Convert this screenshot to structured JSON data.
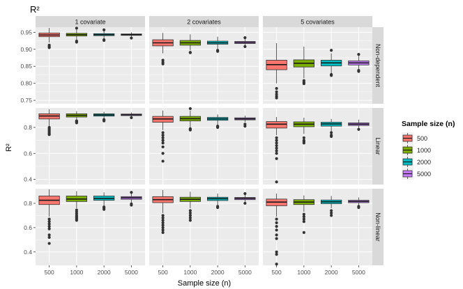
{
  "chart_data": {
    "type": "boxplot",
    "title": "R²",
    "xlabel": "Sample size (n)",
    "ylabel": "R²",
    "categories": [
      "500",
      "1000",
      "2000",
      "5000"
    ],
    "legend": {
      "title": "Sample size (n)",
      "position": "right",
      "entries": [
        {
          "name": "500",
          "color": "#F8766D"
        },
        {
          "name": "1000",
          "color": "#7CAE00"
        },
        {
          "name": "2000",
          "color": "#00BFC4"
        },
        {
          "name": "5000",
          "color": "#C77CFF"
        }
      ]
    },
    "columns": [
      "1 covariate",
      "2 covariates",
      "5 covariates"
    ],
    "rows": [
      {
        "label": "Non-dependent",
        "ylim": [
          0.74,
          0.965
        ],
        "yticks": [
          0.75,
          0.8,
          0.85,
          0.9,
          0.95
        ],
        "yticklabels": [
          "0.75",
          "0.80",
          "0.85",
          "0.90",
          "0.95"
        ]
      },
      {
        "label": "Linear",
        "ylim": [
          0.36,
          0.95
        ],
        "yticks": [
          0.4,
          0.6,
          0.8
        ],
        "yticklabels": [
          "0.4",
          "0.6",
          "0.8"
        ]
      },
      {
        "label": "Non-linear",
        "ylim": [
          0.29,
          0.92
        ],
        "yticks": [
          0.4,
          0.6,
          0.8
        ],
        "yticklabels": [
          "0.4",
          "0.6",
          "0.8"
        ]
      }
    ],
    "grid": true,
    "panels": [
      [
        {
          "boxes": [
            {
              "q1": 0.937,
              "median": 0.942,
              "q3": 0.948,
              "wlo": 0.92,
              "whi": 0.963,
              "outliers": [
                0.912,
                0.908,
                0.905
              ]
            },
            {
              "q1": 0.939,
              "median": 0.943,
              "q3": 0.947,
              "wlo": 0.928,
              "whi": 0.957,
              "outliers": [
                0.962,
                0.924,
                0.921
              ]
            },
            {
              "q1": 0.94,
              "median": 0.943,
              "q3": 0.946,
              "wlo": 0.932,
              "whi": 0.954,
              "outliers": [
                0.957,
                0.928,
                0.926
              ]
            },
            {
              "q1": 0.941,
              "median": 0.943,
              "q3": 0.945,
              "wlo": 0.936,
              "whi": 0.95,
              "outliers": [
                0.933
              ]
            }
          ]
        },
        {
          "boxes": [
            {
              "q1": 0.91,
              "median": 0.919,
              "q3": 0.928,
              "wlo": 0.888,
              "whi": 0.948,
              "outliers": [
                0.868,
                0.862,
                0.857
              ]
            },
            {
              "q1": 0.912,
              "median": 0.919,
              "q3": 0.926,
              "wlo": 0.897,
              "whi": 0.944,
              "outliers": [
                0.891,
                0.89
              ]
            },
            {
              "q1": 0.915,
              "median": 0.919,
              "q3": 0.924,
              "wlo": 0.902,
              "whi": 0.937,
              "outliers": [
                0.897,
                0.894
              ]
            },
            {
              "q1": 0.917,
              "median": 0.92,
              "q3": 0.923,
              "wlo": 0.911,
              "whi": 0.93,
              "outliers": [
                0.934,
                0.908
              ]
            }
          ]
        },
        {
          "boxes": [
            {
              "q1": 0.84,
              "median": 0.855,
              "q3": 0.868,
              "wlo": 0.8,
              "whi": 0.918,
              "outliers": [
                0.785,
                0.775,
                0.768,
                0.762,
                0.757
              ]
            },
            {
              "q1": 0.848,
              "median": 0.859,
              "q3": 0.869,
              "wlo": 0.815,
              "whi": 0.908,
              "outliers": [
                0.808,
                0.803,
                0.799
              ]
            },
            {
              "q1": 0.851,
              "median": 0.86,
              "q3": 0.868,
              "wlo": 0.83,
              "whi": 0.888,
              "outliers": [
                0.897,
                0.826,
                0.823
              ]
            },
            {
              "q1": 0.854,
              "median": 0.86,
              "q3": 0.866,
              "wlo": 0.841,
              "whi": 0.88,
              "outliers": [
                0.885,
                0.838,
                0.835
              ]
            }
          ]
        }
      ],
      [
        {
          "boxes": [
            {
              "q1": 0.865,
              "median": 0.888,
              "q3": 0.905,
              "wlo": 0.81,
              "whi": 0.94,
              "outliers": [
                0.8,
                0.79,
                0.78,
                0.77,
                0.76,
                0.75,
                0.745
              ]
            },
            {
              "q1": 0.88,
              "median": 0.893,
              "q3": 0.905,
              "wlo": 0.855,
              "whi": 0.925,
              "outliers": [
                0.85,
                0.845,
                0.84,
                0.835
              ]
            },
            {
              "q1": 0.887,
              "median": 0.896,
              "q3": 0.905,
              "wlo": 0.868,
              "whi": 0.92,
              "outliers": [
                0.86,
                0.855,
                0.85
              ]
            },
            {
              "q1": 0.891,
              "median": 0.897,
              "q3": 0.903,
              "wlo": 0.883,
              "whi": 0.915,
              "outliers": [
                0.875
              ]
            }
          ]
        },
        {
          "boxes": [
            {
              "q1": 0.84,
              "median": 0.865,
              "q3": 0.885,
              "wlo": 0.78,
              "whi": 0.93,
              "outliers": [
                0.76,
                0.74,
                0.72,
                0.7,
                0.68,
                0.65,
                0.6,
                0.54
              ]
            },
            {
              "q1": 0.85,
              "median": 0.867,
              "q3": 0.885,
              "wlo": 0.8,
              "whi": 0.93,
              "outliers": [
                0.945,
                0.79,
                0.785,
                0.78
              ]
            },
            {
              "q1": 0.855,
              "median": 0.866,
              "q3": 0.877,
              "wlo": 0.82,
              "whi": 0.9,
              "outliers": [
                0.81,
                0.805,
                0.8
              ]
            },
            {
              "q1": 0.858,
              "median": 0.866,
              "q3": 0.874,
              "wlo": 0.84,
              "whi": 0.89,
              "outliers": [
                0.825,
                0.81
              ]
            }
          ]
        },
        {
          "boxes": [
            {
              "q1": 0.795,
              "median": 0.825,
              "q3": 0.845,
              "wlo": 0.74,
              "whi": 0.88,
              "outliers": [
                0.72,
                0.7,
                0.68,
                0.66,
                0.64,
                0.62,
                0.6,
                0.56,
                0.38
              ]
            },
            {
              "q1": 0.805,
              "median": 0.825,
              "q3": 0.843,
              "wlo": 0.75,
              "whi": 0.875,
              "outliers": [
                0.72,
                0.7,
                0.69,
                0.68
              ]
            },
            {
              "q1": 0.81,
              "median": 0.827,
              "q3": 0.84,
              "wlo": 0.77,
              "whi": 0.865,
              "outliers": [
                0.76,
                0.74,
                0.73
              ]
            },
            {
              "q1": 0.815,
              "median": 0.825,
              "q3": 0.835,
              "wlo": 0.795,
              "whi": 0.86,
              "outliers": [
                0.785
              ]
            }
          ]
        }
      ],
      [
        {
          "boxes": [
            {
              "q1": 0.79,
              "median": 0.825,
              "q3": 0.86,
              "wlo": 0.69,
              "whi": 0.915,
              "outliers": [
                0.67,
                0.65,
                0.63,
                0.61,
                0.59,
                0.54,
                0.52,
                0.47
              ]
            },
            {
              "q1": 0.815,
              "median": 0.835,
              "q3": 0.86,
              "wlo": 0.76,
              "whi": 0.9,
              "outliers": [
                0.745,
                0.73,
                0.715,
                0.7,
                0.69,
                0.68,
                0.67,
                0.66
              ]
            },
            {
              "q1": 0.825,
              "median": 0.84,
              "q3": 0.86,
              "wlo": 0.78,
              "whi": 0.89,
              "outliers": [
                0.77,
                0.76,
                0.75
              ]
            },
            {
              "q1": 0.833,
              "median": 0.845,
              "q3": 0.855,
              "wlo": 0.805,
              "whi": 0.88,
              "outliers": [
                0.89,
                0.795,
                0.785
              ]
            }
          ]
        },
        {
          "boxes": [
            {
              "q1": 0.805,
              "median": 0.83,
              "q3": 0.855,
              "wlo": 0.72,
              "whi": 0.91,
              "outliers": [
                0.7,
                0.68,
                0.66,
                0.64,
                0.62,
                0.6,
                0.58,
                0.56
              ]
            },
            {
              "q1": 0.815,
              "median": 0.833,
              "q3": 0.85,
              "wlo": 0.76,
              "whi": 0.895,
              "outliers": [
                0.74,
                0.72,
                0.7,
                0.68,
                0.66
              ]
            },
            {
              "q1": 0.823,
              "median": 0.838,
              "q3": 0.85,
              "wlo": 0.785,
              "whi": 0.88,
              "outliers": [
                0.775,
                0.765
              ]
            },
            {
              "q1": 0.83,
              "median": 0.84,
              "q3": 0.848,
              "wlo": 0.81,
              "whi": 0.87,
              "outliers": [
                0.88,
                0.8
              ]
            }
          ]
        },
        {
          "boxes": [
            {
              "q1": 0.78,
              "median": 0.81,
              "q3": 0.835,
              "wlo": 0.69,
              "whi": 0.88,
              "outliers": [
                0.67,
                0.64,
                0.61,
                0.58,
                0.54,
                0.51,
                0.4,
                0.38,
                0.3
              ]
            },
            {
              "q1": 0.79,
              "median": 0.81,
              "q3": 0.83,
              "wlo": 0.73,
              "whi": 0.865,
              "outliers": [
                0.71,
                0.69,
                0.67,
                0.65,
                0.56
              ]
            },
            {
              "q1": 0.797,
              "median": 0.812,
              "q3": 0.827,
              "wlo": 0.76,
              "whi": 0.86,
              "outliers": [
                0.74,
                0.72,
                0.7
              ]
            },
            {
              "q1": 0.805,
              "median": 0.815,
              "q3": 0.825,
              "wlo": 0.78,
              "whi": 0.848,
              "outliers": [
                0.775,
                0.765
              ]
            }
          ]
        }
      ]
    ]
  }
}
